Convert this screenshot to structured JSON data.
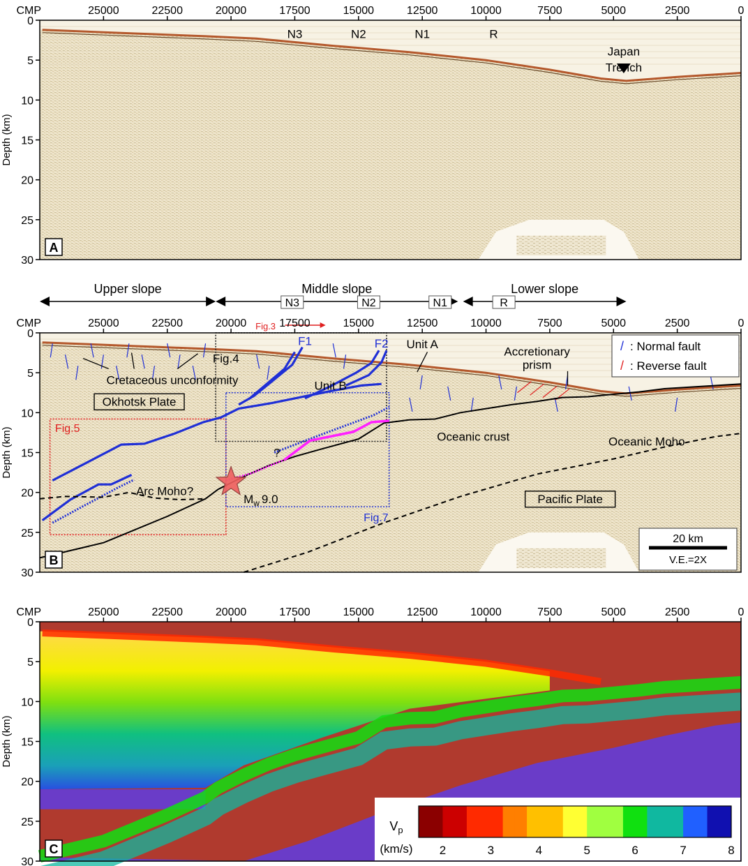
{
  "chart_data": [
    {
      "panel": "A",
      "type": "image",
      "xlabel": "CMP",
      "ylabel": "Depth (km)",
      "xticks": [
        25000,
        22500,
        20000,
        17500,
        15000,
        12500,
        10000,
        7500,
        5000,
        2500,
        0
      ],
      "xlim": [
        27500,
        0
      ],
      "yticks": [
        0,
        5,
        10,
        15,
        20,
        25,
        30
      ],
      "ylim": [
        0,
        30
      ],
      "annotations": [
        {
          "text": "N3",
          "x": 17500,
          "y": 1
        },
        {
          "text": "N2",
          "x": 15000,
          "y": 1
        },
        {
          "text": "N1",
          "x": 12500,
          "y": 1
        },
        {
          "text": "R",
          "x": 9700,
          "y": 1
        },
        {
          "text": "Japan",
          "x": 4600,
          "y": 3.2
        },
        {
          "text": "Trench",
          "x": 4600,
          "y": 5.2
        }
      ],
      "seafloor": {
        "x": [
          27400,
          25000,
          21000,
          19000,
          16000,
          13000,
          10000,
          7500,
          5500,
          4500,
          2500,
          0
        ],
        "y": [
          1.2,
          1.5,
          2.0,
          2.3,
          3.2,
          4.0,
          5.0,
          6.2,
          7.3,
          7.6,
          7.1,
          6.6
        ]
      },
      "label": "A"
    },
    {
      "panel": "B",
      "type": "interpretation",
      "xlabel": "CMP",
      "ylabel": "Depth (km)",
      "xticks": [
        25000,
        22500,
        20000,
        17500,
        15000,
        12500,
        10000,
        7500,
        5000,
        2500,
        0
      ],
      "xlim": [
        27500,
        0
      ],
      "yticks": [
        0,
        5,
        10,
        15,
        20,
        25,
        30
      ],
      "ylim": [
        0,
        30
      ],
      "slope_segments": [
        {
          "text": "Upper slope",
          "x0": 27500,
          "x1": 20600
        },
        {
          "text": "Middle slope",
          "x0": 20600,
          "x1": 11100
        },
        {
          "text": "Lower slope",
          "x0": 10900,
          "x1": 4500
        }
      ],
      "boxed_site_labels": [
        {
          "text": "N3",
          "x": 17600
        },
        {
          "text": "N2",
          "x": 14600
        },
        {
          "text": "N1",
          "x": 11800
        },
        {
          "text": "R",
          "x": 9300
        }
      ],
      "fig3_label": "Fig.3",
      "fig3_range": [
        18700,
        16400
      ],
      "fault_labels": [
        {
          "text": "F1",
          "x": 17100,
          "y": 1.0
        },
        {
          "text": "F2",
          "x": 14100,
          "y": 1.3
        }
      ],
      "unit_labels": [
        {
          "text": "Unit A",
          "x": 12500,
          "y": 1.4
        },
        {
          "text": "Unit B",
          "x": 16100,
          "y": 6.6
        }
      ],
      "region_labels": [
        {
          "text": "Cretaceous unconformity",
          "x": 22300,
          "y": 5.9
        },
        {
          "text": "Okhotsk Plate",
          "x": 23600,
          "y": 8.6,
          "boxed": true
        },
        {
          "text": "Oceanic crust",
          "x": 10500,
          "y": 13.0
        },
        {
          "text": "Oceanic Moho",
          "x": 3700,
          "y": 13.6
        },
        {
          "text": "Arc Moho?",
          "x": 22600,
          "y": 19.8
        },
        {
          "text": "Pacific Plate",
          "x": 6700,
          "y": 20.8,
          "boxed": true
        },
        {
          "text": "Accretionary",
          "x": 8000,
          "y": 2.3
        },
        {
          "text": "prism",
          "x": 8000,
          "y": 4.0
        },
        {
          "text": "Fig.4",
          "x": 20200,
          "y": 3.2
        },
        {
          "text": "?",
          "x": 18200,
          "y": 15.0
        }
      ],
      "boxes": [
        {
          "name": "Fig.4",
          "color": "#222222",
          "x0": 20600,
          "x1": 13900,
          "y0": 0,
          "y1": 13.6
        },
        {
          "name": "Fig.5",
          "color": "#e02020",
          "x0": 27100,
          "x1": 20200,
          "y0": 10.8,
          "y1": 25.3
        },
        {
          "name": "Fig.7",
          "color": "#2030d0",
          "x0": 20200,
          "x1": 13800,
          "y0": 7.5,
          "y1": 21.8
        }
      ],
      "fig5_label": "Fig.5",
      "fig7_label": "Fig.7",
      "magnitude_prefix": "M",
      "magnitude_sub": "w",
      "magnitude_value": "9.0",
      "mainshock": {
        "x": 20000,
        "y": 18.7
      },
      "plate_boundary": {
        "x": [
          27500,
          25000,
          22500,
          21000,
          20500,
          19500,
          18500,
          17500,
          16500,
          15000,
          14000,
          13000,
          12000,
          11000,
          10000,
          9000,
          8000,
          7000,
          6000,
          5000,
          4000,
          3000,
          2000,
          1000,
          0
        ],
        "y": [
          28.2,
          26.3,
          23.0,
          20.8,
          19.6,
          18.0,
          16.6,
          15.5,
          14.6,
          13.3,
          11.3,
          10.9,
          10.8,
          10.0,
          9.5,
          9.0,
          8.6,
          8.1,
          8.0,
          7.7,
          7.4,
          7.0,
          6.8,
          6.6,
          6.4
        ]
      },
      "arc_moho": {
        "x": [
          27500,
          26500,
          25000,
          24000,
          23000,
          22000,
          21000
        ],
        "y": [
          20.8,
          20.5,
          20.6,
          20.0,
          20.7,
          20.9,
          20.8
        ]
      },
      "oceanic_moho": {
        "x": [
          19500,
          17000,
          14000,
          11000,
          8000,
          5000,
          3000,
          1000,
          0
        ],
        "y": [
          30.0,
          27.5,
          23.8,
          20.5,
          17.7,
          15.8,
          14.3,
          13.0,
          12.6
        ]
      },
      "legend": [
        {
          "symbol": "/",
          "label": ": Normal fault",
          "color": "#1f2fd6"
        },
        {
          "symbol": "/",
          "label": ": Reverse fault",
          "color": "#e02020"
        }
      ],
      "scalebar_label": "20 km",
      "vertical_exaggeration": "V.E.=2X",
      "label": "B"
    },
    {
      "panel": "C",
      "type": "heatmap",
      "xlabel": "CMP",
      "ylabel": "Depth (km)",
      "xticks": [
        25000,
        22500,
        20000,
        17500,
        15000,
        12500,
        10000,
        7500,
        5000,
        2500,
        0
      ],
      "xlim": [
        27500,
        0
      ],
      "yticks": [
        0,
        5,
        10,
        15,
        20,
        25,
        30
      ],
      "ylim": [
        0,
        30
      ],
      "colorbar_label_line1": "V",
      "colorbar_label_sub": "p",
      "colorbar_label_line2": "(km/s)",
      "colorbar_ticks": [
        2,
        3,
        4,
        5,
        6,
        7,
        8
      ],
      "colorbar_range": [
        1.5,
        8
      ],
      "colormap": [
        "#8b0000",
        "#cc0000",
        "#ff2a00",
        "#ff7f00",
        "#ffc000",
        "#ffff33",
        "#a0ff40",
        "#10e010",
        "#10b8a0",
        "#2060ff",
        "#1010b0"
      ],
      "label": "C"
    }
  ]
}
